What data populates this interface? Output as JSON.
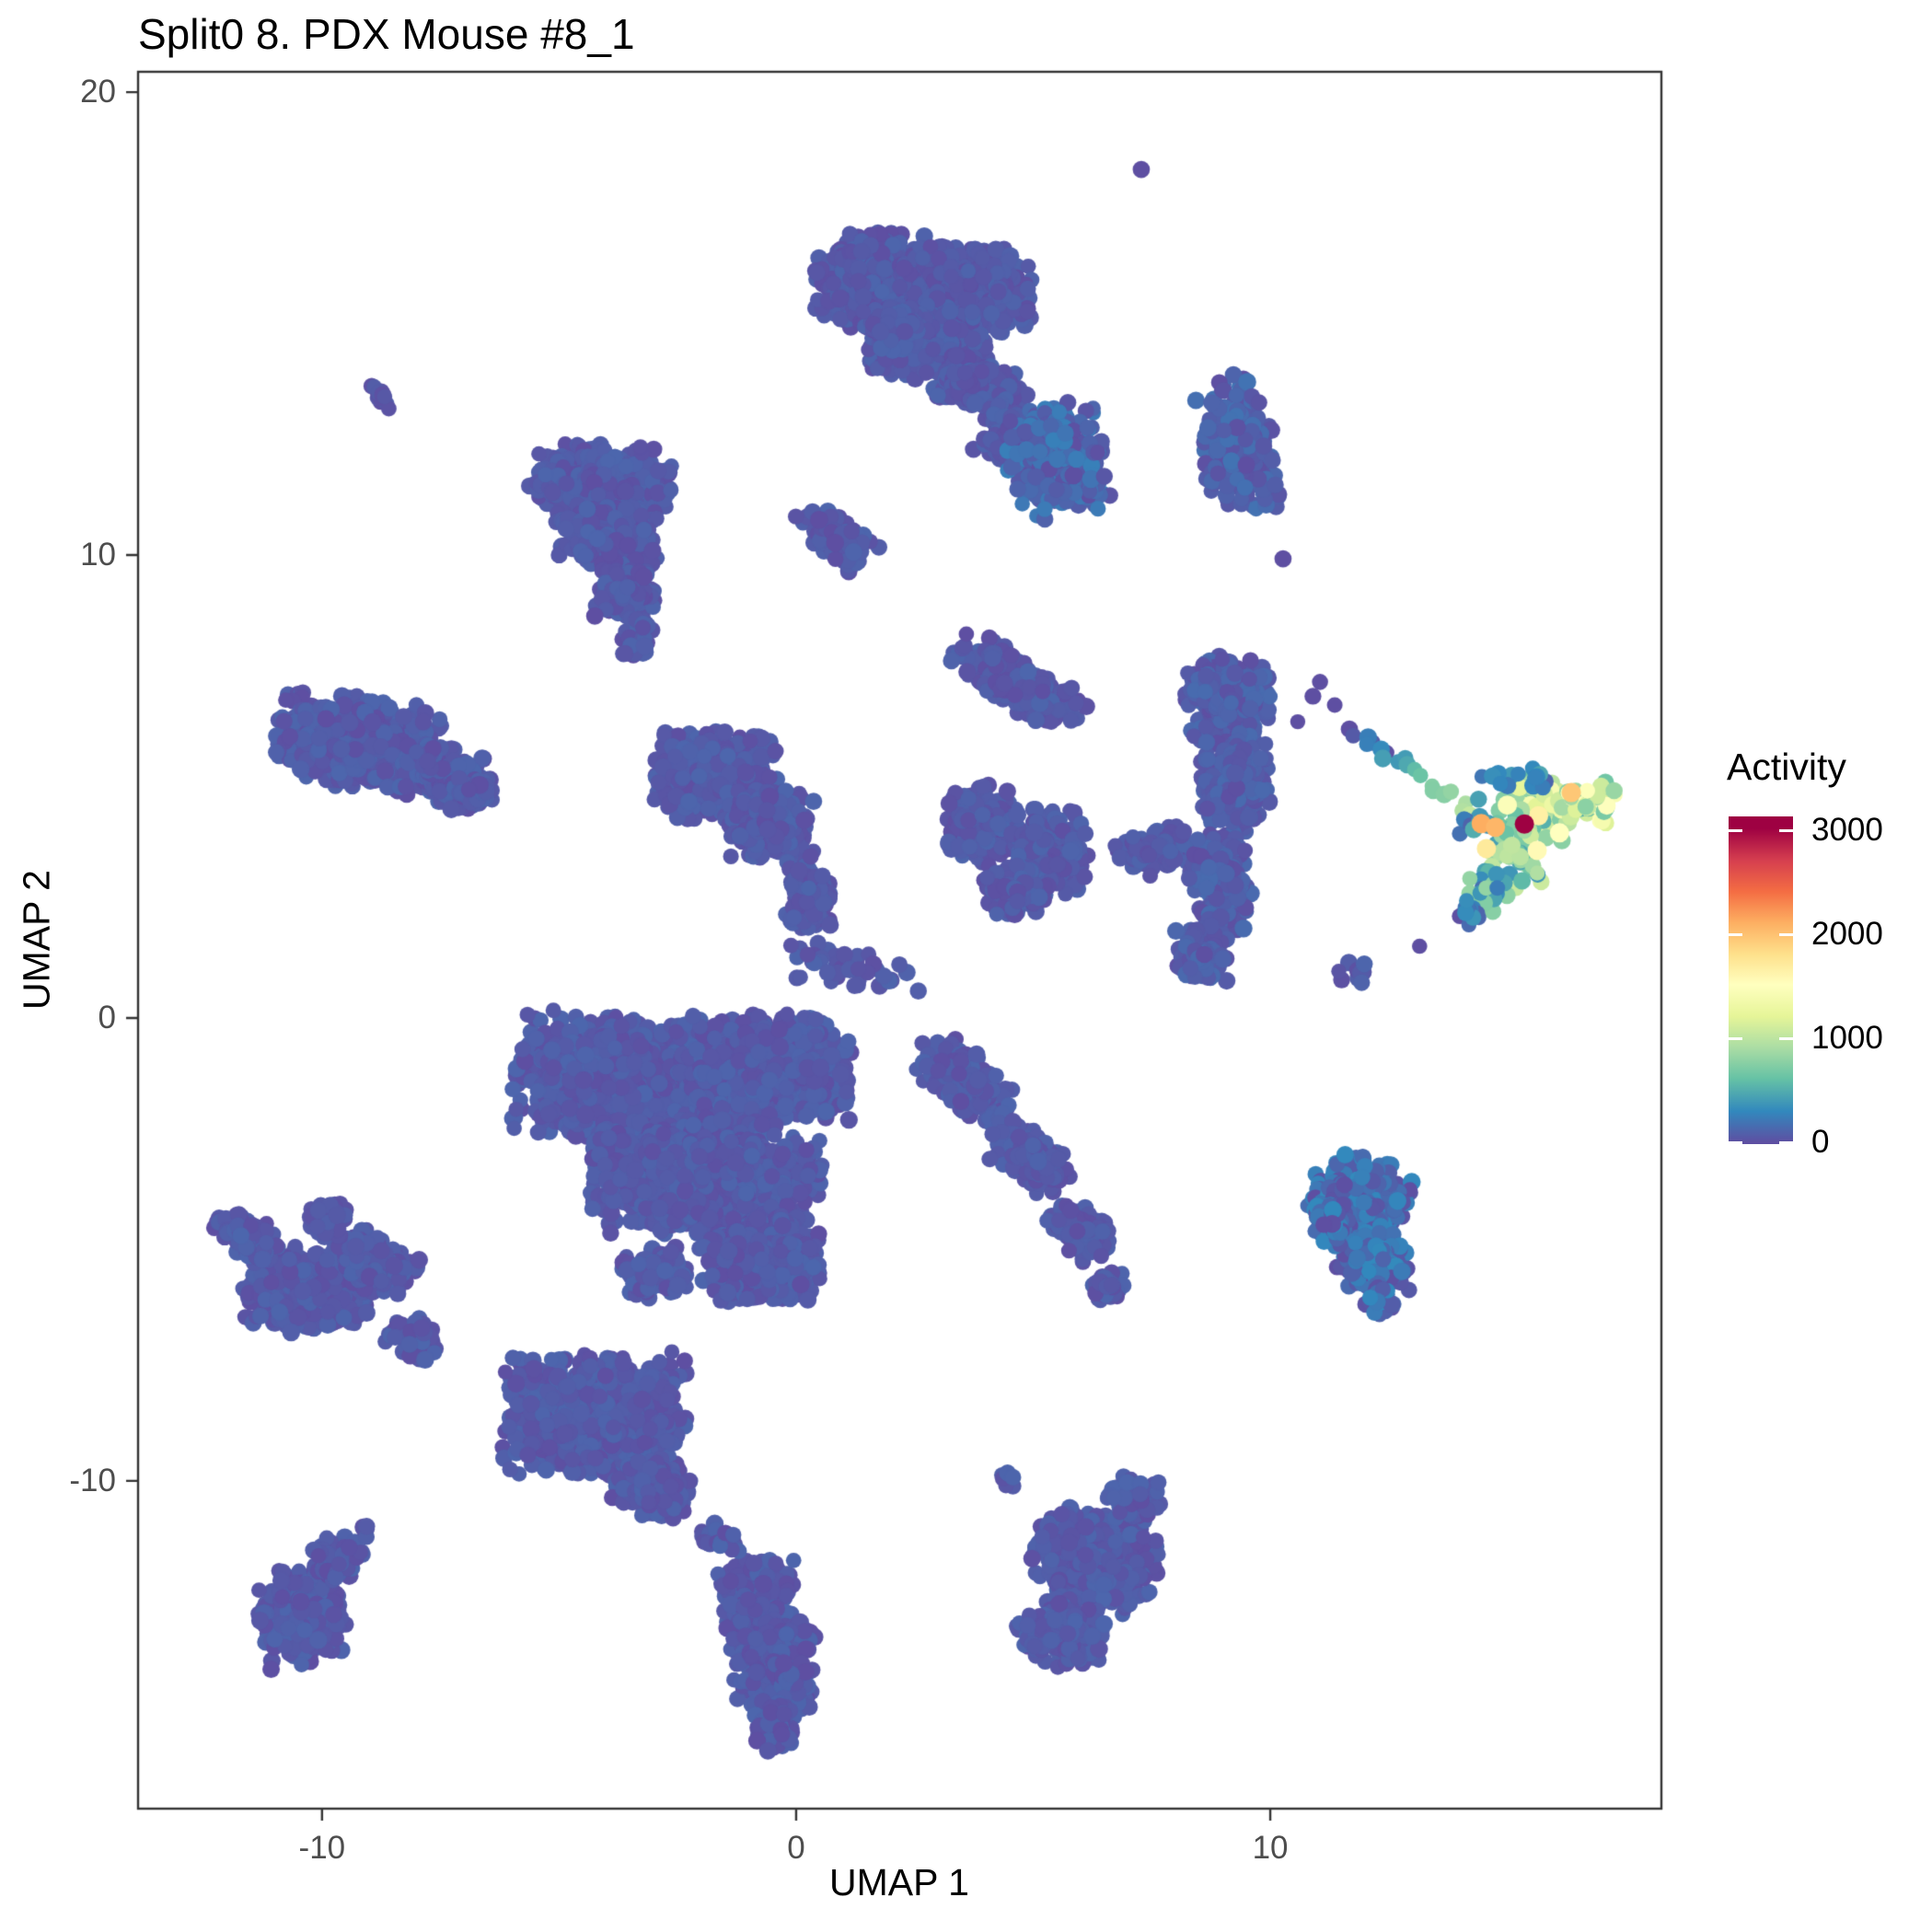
{
  "title": "Split0 8. PDX Mouse #8_1",
  "chart_data": {
    "type": "scatter",
    "subtype": "umap-feature-plot",
    "title": "Split0 8. PDX Mouse #8_1",
    "xlabel": "UMAP 1",
    "ylabel": "UMAP 2",
    "grid": false,
    "background": "#ffffff",
    "panel_border_color": "#333333",
    "tick_label_color": "#4d4d4d",
    "point_radius_px": 9,
    "x_axis": {
      "min": -13.88,
      "max": 18.25,
      "ticks": [
        {
          "value": -10,
          "label": "-10"
        },
        {
          "value": 0,
          "label": "0"
        },
        {
          "value": 10,
          "label": "10"
        }
      ]
    },
    "y_axis": {
      "min": -17.08,
      "max": 20.44,
      "ticks": [
        {
          "value": 20,
          "label": "20"
        },
        {
          "value": 10,
          "label": "10"
        },
        {
          "value": 0,
          "label": "0"
        },
        {
          "value": -10,
          "label": "-10"
        }
      ]
    },
    "legend": {
      "title": "Activity",
      "position": "right",
      "min": 0,
      "max": 3000,
      "ticks": [
        {
          "value": 3000,
          "label": "3000"
        },
        {
          "value": 2000,
          "label": "2000"
        },
        {
          "value": 1000,
          "label": "1000"
        },
        {
          "value": 0,
          "label": "0"
        }
      ]
    },
    "colormap": {
      "name": "spectral-reversed",
      "domain": [
        0,
        3000
      ],
      "stops": [
        "#5E4FA2",
        "#3288BD",
        "#66C2A5",
        "#ABDDA4",
        "#E6F598",
        "#FFFFBF",
        "#FEE08B",
        "#FDAE61",
        "#F46D43",
        "#D53E4F",
        "#9E0142"
      ]
    },
    "seed": 12345,
    "clusters": [
      {
        "name": "top-big",
        "activity": [
          0,
          120
        ],
        "lobes": [
          {
            "x": 1.65,
            "y": 15.95,
            "rx": 1.25,
            "ry": 1.05,
            "rot": 0,
            "n": 650
          },
          {
            "x": 3.55,
            "y": 15.75,
            "rx": 1.45,
            "ry": 0.95,
            "rot": -5,
            "n": 750
          },
          {
            "x": 2.75,
            "y": 14.55,
            "rx": 1.35,
            "ry": 0.75,
            "rot": 0,
            "n": 420
          },
          {
            "x": 3.9,
            "y": 13.6,
            "rx": 0.95,
            "ry": 0.6,
            "rot": -25,
            "n": 230
          },
          {
            "x": 4.55,
            "y": 12.5,
            "rx": 0.65,
            "ry": 0.6,
            "rot": -30,
            "n": 130
          },
          {
            "x": 2.0,
            "y": 14.9,
            "rx": 0.6,
            "ry": 0.5,
            "rot": 0,
            "n": 120
          }
        ]
      },
      {
        "name": "top-small-diagonal",
        "activity": [
          0,
          120
        ],
        "lobes": [
          {
            "x": 0.85,
            "y": 10.4,
            "rx": 0.95,
            "ry": 0.45,
            "rot": -42,
            "n": 150
          }
        ]
      },
      {
        "name": "mid-upper-blob",
        "activity": [
          0,
          260
        ],
        "lobes": [
          {
            "x": 5.5,
            "y": 12.05,
            "rx": 1.05,
            "ry": 1.25,
            "rot": 10,
            "n": 340
          }
        ]
      },
      {
        "name": "grape-cluster",
        "activity": [
          0,
          200
        ],
        "lobes": [
          {
            "x": 9.3,
            "y": 12.35,
            "rx": 0.8,
            "ry": 1.55,
            "rot": 8,
            "n": 240
          }
        ]
      },
      {
        "name": "tiny-pair",
        "activity": [
          0,
          80
        ],
        "lobes": [
          {
            "x": -8.68,
            "y": 13.4,
            "rx": 0.42,
            "ry": 0.18,
            "rot": -38,
            "n": 12
          }
        ]
      },
      {
        "name": "triangle-cluster",
        "activity": [
          0,
          120
        ],
        "lobes": [
          {
            "x": -4.15,
            "y": 11.55,
            "rx": 1.55,
            "ry": 0.85,
            "rot": 0,
            "n": 520
          },
          {
            "x": -3.95,
            "y": 10.35,
            "rx": 1.05,
            "ry": 0.7,
            "rot": 0,
            "n": 280
          },
          {
            "x": -3.6,
            "y": 9.2,
            "rx": 0.65,
            "ry": 0.55,
            "rot": 0,
            "n": 130
          },
          {
            "x": -3.35,
            "y": 8.2,
            "rx": 0.33,
            "ry": 0.5,
            "rot": 0,
            "n": 45
          }
        ]
      },
      {
        "name": "whale-cluster",
        "activity": [
          0,
          120
        ],
        "lobes": [
          {
            "x": -9.25,
            "y": 5.95,
            "rx": 1.75,
            "ry": 1.0,
            "rot": -8,
            "n": 650
          },
          {
            "x": -7.4,
            "y": 5.2,
            "rx": 0.95,
            "ry": 0.65,
            "rot": -15,
            "n": 230
          },
          {
            "x": -6.7,
            "y": 4.85,
            "rx": 0.4,
            "ry": 0.3,
            "rot": 0,
            "n": 45
          }
        ]
      },
      {
        "name": "center-heart",
        "activity": [
          0,
          120
        ],
        "lobes": [
          {
            "x": -1.7,
            "y": 5.25,
            "rx": 1.3,
            "ry": 0.95,
            "rot": 0,
            "n": 480
          },
          {
            "x": -0.55,
            "y": 4.15,
            "rx": 0.95,
            "ry": 0.8,
            "rot": 0,
            "n": 260
          },
          {
            "x": 0.25,
            "y": 2.7,
            "rx": 0.5,
            "ry": 0.8,
            "rot": 0,
            "n": 110
          }
        ]
      },
      {
        "name": "bridge-sparse",
        "activity": [
          0,
          120
        ],
        "lobes": [
          {
            "x": 1.1,
            "y": 1.1,
            "rx": 1.7,
            "ry": 0.55,
            "rot": -15,
            "n": 48
          }
        ]
      },
      {
        "name": "arm-upper-right",
        "activity": [
          0,
          120
        ],
        "lobes": [
          {
            "x": 4.7,
            "y": 7.2,
            "rx": 1.55,
            "ry": 0.55,
            "rot": -33,
            "n": 260
          }
        ]
      },
      {
        "name": "w-cluster",
        "activity": [
          0,
          120
        ],
        "lobes": [
          {
            "x": 3.95,
            "y": 4.2,
            "rx": 0.8,
            "ry": 0.85,
            "rot": 0,
            "n": 210
          },
          {
            "x": 5.35,
            "y": 3.6,
            "rx": 0.85,
            "ry": 0.95,
            "rot": 0,
            "n": 230
          },
          {
            "x": 4.6,
            "y": 2.75,
            "rx": 0.65,
            "ry": 0.6,
            "rot": 0,
            "n": 110
          }
        ]
      },
      {
        "name": "bridge-right",
        "activity": [
          0,
          120
        ],
        "lobes": [
          {
            "x": 7.6,
            "y": 3.6,
            "rx": 0.9,
            "ry": 0.5,
            "rot": 12,
            "n": 100
          }
        ]
      },
      {
        "name": "tall-vertical",
        "activity": [
          0,
          150
        ],
        "lobes": [
          {
            "x": 9.1,
            "y": 6.9,
            "rx": 0.9,
            "ry": 0.95,
            "rot": 0,
            "n": 280
          },
          {
            "x": 9.25,
            "y": 5.0,
            "rx": 0.75,
            "ry": 1.15,
            "rot": 0,
            "n": 300
          },
          {
            "x": 8.95,
            "y": 2.9,
            "rx": 0.65,
            "ry": 1.05,
            "rot": 8,
            "n": 220
          },
          {
            "x": 8.55,
            "y": 1.35,
            "rx": 0.55,
            "ry": 0.65,
            "rot": 0,
            "n": 100
          }
        ]
      },
      {
        "name": "square-bottom-right",
        "activity": [
          0,
          320
        ],
        "lobes": [
          {
            "x": 11.9,
            "y": -3.9,
            "rx": 1.05,
            "ry": 0.9,
            "rot": -12,
            "n": 340
          },
          {
            "x": 12.15,
            "y": -5.25,
            "rx": 0.8,
            "ry": 0.65,
            "rot": 0,
            "n": 150
          },
          {
            "x": 11.3,
            "y": -4.35,
            "rx": 0.45,
            "ry": 0.5,
            "rot": 0,
            "n": 70
          },
          {
            "x": 12.35,
            "y": -6.1,
            "rx": 0.35,
            "ry": 0.4,
            "rot": 0,
            "n": 40
          }
        ]
      },
      {
        "name": "big-central",
        "activity": [
          0,
          120
        ],
        "lobes": [
          {
            "x": -3.7,
            "y": -1.3,
            "rx": 2.25,
            "ry": 1.35,
            "rot": -5,
            "n": 1200
          },
          {
            "x": -0.7,
            "y": -1.1,
            "rx": 1.85,
            "ry": 1.2,
            "rot": 0,
            "n": 1000
          },
          {
            "x": -1.9,
            "y": -3.4,
            "rx": 2.45,
            "ry": 1.25,
            "rot": 0,
            "n": 1100
          },
          {
            "x": -0.8,
            "y": -5.2,
            "rx": 1.35,
            "ry": 0.95,
            "rot": 0,
            "n": 450
          },
          {
            "x": -3.0,
            "y": -5.5,
            "rx": 0.7,
            "ry": 0.55,
            "rot": 0,
            "n": 130
          },
          {
            "x": 3.5,
            "y": -1.3,
            "rx": 1.15,
            "ry": 0.6,
            "rot": -38,
            "n": 240
          },
          {
            "x": 4.9,
            "y": -3.0,
            "rx": 0.95,
            "ry": 0.55,
            "rot": -38,
            "n": 180
          },
          {
            "x": 6.0,
            "y": -4.6,
            "rx": 0.75,
            "ry": 0.5,
            "rot": -38,
            "n": 130
          },
          {
            "x": 6.6,
            "y": -5.85,
            "rx": 0.4,
            "ry": 0.4,
            "rot": 0,
            "n": 50
          }
        ]
      },
      {
        "name": "spiky-left",
        "activity": [
          0,
          120
        ],
        "lobes": [
          {
            "x": -10.3,
            "y": -5.9,
            "rx": 1.35,
            "ry": 0.95,
            "rot": -10,
            "n": 380
          },
          {
            "x": -8.9,
            "y": -5.3,
            "rx": 0.95,
            "ry": 0.6,
            "rot": -25,
            "n": 180
          },
          {
            "x": -11.6,
            "y": -4.7,
            "rx": 0.7,
            "ry": 0.5,
            "rot": -30,
            "n": 80
          },
          {
            "x": -9.9,
            "y": -4.35,
            "rx": 0.5,
            "ry": 0.4,
            "rot": 0,
            "n": 55
          },
          {
            "x": -8.05,
            "y": -6.9,
            "rx": 0.6,
            "ry": 0.45,
            "rot": -20,
            "n": 70
          }
        ]
      },
      {
        "name": "bottom-oval",
        "activity": [
          0,
          120
        ],
        "lobes": [
          {
            "x": -4.25,
            "y": -8.55,
            "rx": 1.95,
            "ry": 1.35,
            "rot": 0,
            "n": 850
          },
          {
            "x": -3.0,
            "y": -10.2,
            "rx": 0.85,
            "ry": 0.6,
            "rot": -20,
            "n": 160
          },
          {
            "x": -1.85,
            "y": -11.2,
            "rx": 0.28,
            "ry": 0.38,
            "rot": 0,
            "n": 10
          }
        ]
      },
      {
        "name": "bottom-diamond",
        "activity": [
          0,
          120
        ],
        "lobes": [
          {
            "x": -0.85,
            "y": -12.6,
            "rx": 0.8,
            "ry": 0.9,
            "rot": 0,
            "n": 240
          },
          {
            "x": -0.5,
            "y": -14.0,
            "rx": 0.9,
            "ry": 1.0,
            "rot": 0,
            "n": 300
          },
          {
            "x": -0.45,
            "y": -15.3,
            "rx": 0.5,
            "ry": 0.55,
            "rot": 0,
            "n": 90
          },
          {
            "x": -1.45,
            "y": -11.35,
            "rx": 0.3,
            "ry": 0.3,
            "rot": 0,
            "n": 14
          }
        ]
      },
      {
        "name": "penguin-bottom-left",
        "activity": [
          0,
          120
        ],
        "lobes": [
          {
            "x": -10.4,
            "y": -12.9,
            "rx": 0.95,
            "ry": 1.05,
            "rot": 10,
            "n": 280
          },
          {
            "x": -9.65,
            "y": -11.7,
            "rx": 0.55,
            "ry": 0.5,
            "rot": 0,
            "n": 80
          },
          {
            "x": -9.1,
            "y": -11.1,
            "rx": 0.2,
            "ry": 0.2,
            "rot": 0,
            "n": 6
          }
        ]
      },
      {
        "name": "bottom-right-blob",
        "activity": [
          0,
          120
        ],
        "lobes": [
          {
            "x": 6.3,
            "y": -11.7,
            "rx": 1.35,
            "ry": 1.05,
            "rot": -15,
            "n": 420
          },
          {
            "x": 5.6,
            "y": -13.3,
            "rx": 0.95,
            "ry": 0.75,
            "rot": 0,
            "n": 190
          },
          {
            "x": 7.1,
            "y": -10.4,
            "rx": 0.6,
            "ry": 0.5,
            "rot": 0,
            "n": 80
          },
          {
            "x": 4.55,
            "y": -9.9,
            "rx": 0.3,
            "ry": 0.25,
            "rot": 0,
            "n": 7
          }
        ]
      },
      {
        "name": "small-blob-below-active",
        "activity": [
          0,
          120
        ],
        "lobes": [
          {
            "x": 11.75,
            "y": 0.95,
            "rx": 0.38,
            "ry": 0.33,
            "rot": 0,
            "n": 10
          }
        ]
      }
    ],
    "active_cluster": {
      "name": "activity-high-cluster",
      "lobes": [
        {
          "x": 15.75,
          "y": 4.55,
          "rx": 1.05,
          "ry": 0.7,
          "rot": -10,
          "n": 65,
          "activity": [
            500,
            1400
          ]
        },
        {
          "x": 16.75,
          "y": 4.7,
          "rx": 0.75,
          "ry": 0.5,
          "rot": -15,
          "n": 40,
          "activity": [
            500,
            1500
          ]
        },
        {
          "x": 15.1,
          "y": 3.6,
          "rx": 0.75,
          "ry": 0.8,
          "rot": 0,
          "n": 45,
          "activity": [
            350,
            1100
          ]
        },
        {
          "x": 14.55,
          "y": 2.7,
          "rx": 0.5,
          "ry": 0.6,
          "rot": -20,
          "n": 25,
          "activity": [
            150,
            800
          ]
        },
        {
          "x": 14.25,
          "y": 2.2,
          "rx": 0.3,
          "ry": 0.35,
          "rot": 0,
          "n": 10,
          "activity": [
            80,
            400
          ]
        },
        {
          "x": 15.3,
          "y": 5.2,
          "rx": 0.9,
          "ry": 0.3,
          "rot": -5,
          "n": 14,
          "activity": [
            100,
            450
          ]
        },
        {
          "x": 14.35,
          "y": 4.3,
          "rx": 0.35,
          "ry": 0.5,
          "rot": 0,
          "n": 12,
          "activity": [
            100,
            500
          ]
        }
      ],
      "trail": {
        "x1": 12.0,
        "y1": 6.0,
        "x2": 14.3,
        "y2": 4.45,
        "n": 16,
        "jitter": 0.14,
        "activity_start": 120,
        "activity_end": 900
      },
      "highlight_points": [
        {
          "x": 14.45,
          "y": 4.2,
          "value": 2100
        },
        {
          "x": 14.75,
          "y": 4.12,
          "value": 2050
        },
        {
          "x": 16.35,
          "y": 4.87,
          "value": 1950
        },
        {
          "x": 14.56,
          "y": 3.66,
          "value": 1700
        },
        {
          "x": 15.66,
          "y": 4.37,
          "value": 1650
        },
        {
          "x": 15.63,
          "y": 3.62,
          "value": 1550
        },
        {
          "x": 16.1,
          "y": 4.0,
          "value": 1500
        },
        {
          "x": 15.0,
          "y": 4.6,
          "value": 1450
        },
        {
          "x": 15.36,
          "y": 4.19,
          "value": 3000
        }
      ]
    },
    "singleton_points": [
      {
        "x": 7.28,
        "y": 18.33,
        "value": 0
      },
      {
        "x": 10.27,
        "y": 9.92,
        "value": 0
      },
      {
        "x": 11.05,
        "y": 7.26,
        "value": 0
      },
      {
        "x": 11.36,
        "y": 6.76,
        "value": 0
      },
      {
        "x": 10.58,
        "y": 6.4,
        "value": 0
      },
      {
        "x": 11.67,
        "y": 6.24,
        "value": 0
      },
      {
        "x": 12.45,
        "y": 5.73,
        "value": 0
      },
      {
        "x": 10.9,
        "y": 6.95,
        "value": 0
      },
      {
        "x": 13.15,
        "y": 1.55,
        "value": 0
      },
      {
        "x": 14.0,
        "y": 2.2,
        "value": 0
      },
      {
        "x": 11.75,
        "y": 6.1,
        "value": 60
      },
      {
        "x": 12.15,
        "y": 5.95,
        "value": 80
      }
    ]
  }
}
